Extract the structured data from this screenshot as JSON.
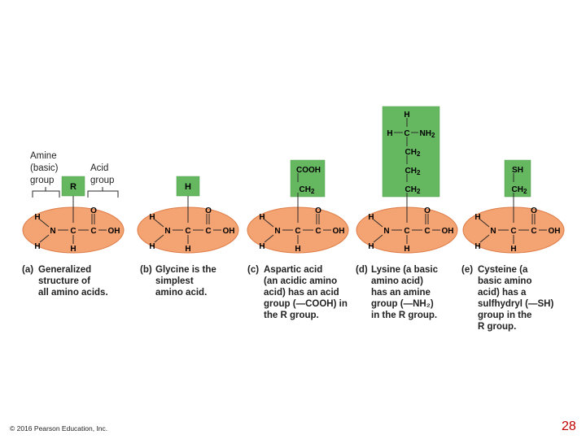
{
  "annotations": {
    "amine": "Amine\n(basic)\ngroup",
    "acid": "Acid\ngroup"
  },
  "atoms": {
    "H": "H",
    "N": "N",
    "C": "C",
    "O": "O",
    "OH": "OH",
    "R": "R",
    "SH": "SH",
    "COOH": "COOH",
    "NH2_base": "NH",
    "sub2": "2",
    "CH_base": "CH"
  },
  "molecules": [
    {
      "id": "a",
      "label": "(a)",
      "caption": "Generalized\nstructure of\nall amino acids."
    },
    {
      "id": "b",
      "label": "(b)",
      "caption": "Glycine is the\nsimplest\namino acid."
    },
    {
      "id": "c",
      "label": "(c)",
      "caption": "Aspartic acid\n(an acidic amino\nacid) has an acid\ngroup (—COOH) in\nthe R group."
    },
    {
      "id": "d",
      "label": "(d)",
      "caption": "Lysine (a basic\namino acid)\nhas an amine\ngroup (—NH₂)\nin the R group."
    },
    {
      "id": "e",
      "label": "(e)",
      "caption": "Cysteine (a\nbasic amino\nacid) has a\nsulfhydryl (—SH)\ngroup in the\nR group."
    }
  ],
  "footer": {
    "copyright": "© 2016 Pearson Education, Inc.",
    "page_number": "28"
  },
  "colors": {
    "ellipse_fill": "#f4a372",
    "ellipse_edge": "#de7a44",
    "r_group": "#65b860",
    "r_group_edge": "#4c9a47",
    "bond": "#2a2a2a",
    "page_number": "#c00000"
  }
}
